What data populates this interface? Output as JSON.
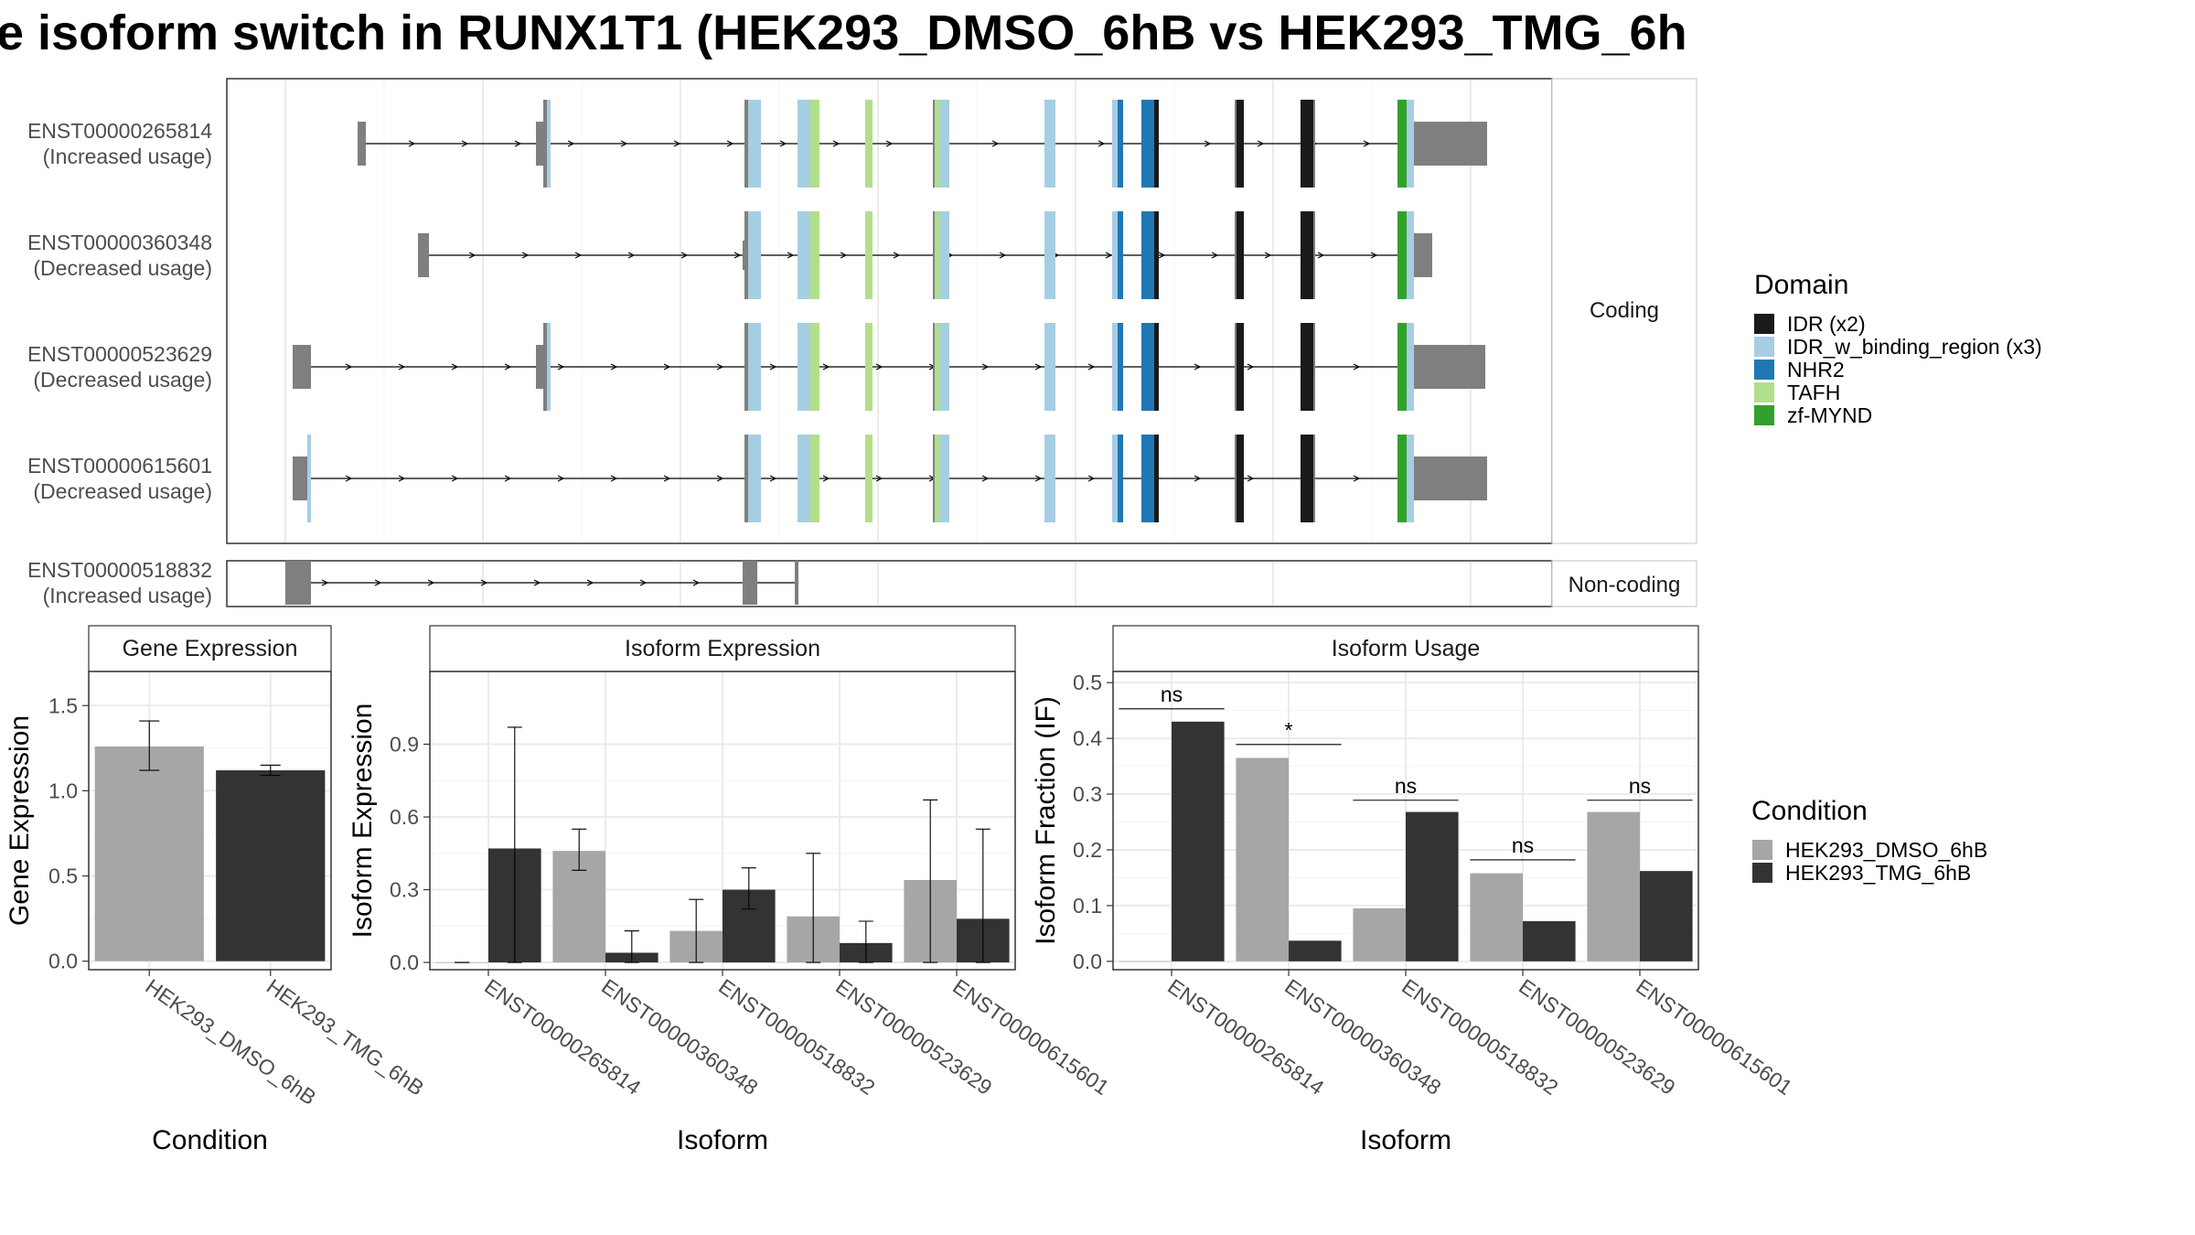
{
  "title": "e isoform switch in RUNX1T1 (HEK293_DMSO_6hB vs HEK293_TMG_6h",
  "colors": {
    "grey_bar": "#a6a6a6",
    "dark_bar": "#333333",
    "exon": "#7f7f7f",
    "IDR": "#1a1a1a",
    "IDR_w_binding_region": "#a6cee3",
    "NHR2": "#1f78b4",
    "TAFH": "#b2df8a",
    "zf_MYND": "#33a02c"
  },
  "structure": {
    "coding_label": "Coding",
    "noncoding_label": "Non-coding",
    "transcripts": [
      {
        "id": "ENST00000265814",
        "usage": "(Increased usage)"
      },
      {
        "id": "ENST00000360348",
        "usage": "(Decreased usage)"
      },
      {
        "id": "ENST00000523629",
        "usage": "(Decreased usage)"
      },
      {
        "id": "ENST00000615601",
        "usage": "(Decreased usage)"
      }
    ],
    "noncoding": {
      "id": "ENST00000518832",
      "usage": "(Increased usage)"
    }
  },
  "domain_legend": {
    "title": "Domain",
    "items": [
      {
        "label": "IDR (x2)",
        "color": "#1a1a1a"
      },
      {
        "label": "IDR_w_binding_region (x3)",
        "color": "#a6cee3"
      },
      {
        "label": "NHR2",
        "color": "#1f78b4"
      },
      {
        "label": "TAFH",
        "color": "#b2df8a"
      },
      {
        "label": "zf-MYND",
        "color": "#33a02c"
      }
    ]
  },
  "condition_legend": {
    "title": "Condition",
    "items": [
      {
        "label": "HEK293_DMSO_6hB",
        "color": "#a6a6a6"
      },
      {
        "label": "HEK293_TMG_6hB",
        "color": "#333333"
      }
    ]
  },
  "chart_data": [
    {
      "type": "bar",
      "title": "Gene Expression",
      "xlabel": "Condition",
      "ylabel": "Gene Expression",
      "ylim": [
        -0.05,
        1.7
      ],
      "yticks": [
        0.0,
        0.5,
        1.0,
        1.5
      ],
      "ytick_labels": [
        "0.0",
        "0.5",
        "1.0",
        "1.5"
      ],
      "categories": [
        "HEK293_DMSO_6hB",
        "HEK293_TMG_6hB"
      ],
      "values": [
        1.26,
        1.12
      ],
      "err_low": [
        1.12,
        1.09
      ],
      "err_high": [
        1.41,
        1.15
      ]
    },
    {
      "type": "bar",
      "title": "Isoform Expression",
      "xlabel": "Isoform",
      "ylabel": "Isoform Expression",
      "ylim": [
        -0.03,
        1.2
      ],
      "yticks": [
        0.0,
        0.3,
        0.6,
        0.9
      ],
      "ytick_labels": [
        "0.0",
        "0.3",
        "0.6",
        "0.9"
      ],
      "categories": [
        "ENST00000265814",
        "ENST00000360348",
        "ENST00000518832",
        "ENST00000523629",
        "ENST00000615601"
      ],
      "series": [
        {
          "name": "HEK293_DMSO_6hB",
          "values": [
            0.0,
            0.46,
            0.13,
            0.19,
            0.34
          ],
          "err_low": [
            0.0,
            0.38,
            0.0,
            0.0,
            0.0
          ],
          "err_high": [
            0.0,
            0.55,
            0.26,
            0.45,
            0.67
          ]
        },
        {
          "name": "HEK293_TMG_6hB",
          "values": [
            0.47,
            0.04,
            0.3,
            0.08,
            0.18
          ],
          "err_low": [
            0.0,
            0.0,
            0.22,
            0.0,
            0.0
          ],
          "err_high": [
            0.97,
            0.13,
            0.39,
            0.17,
            0.55
          ]
        }
      ]
    },
    {
      "type": "bar",
      "title": "Isoform Usage",
      "xlabel": "Isoform",
      "ylabel": "Isoform Fraction (IF)",
      "ylim": [
        -0.015,
        0.52
      ],
      "yticks": [
        0.0,
        0.1,
        0.2,
        0.3,
        0.4,
        0.5
      ],
      "ytick_labels": [
        "0.0",
        "0.1",
        "0.2",
        "0.3",
        "0.4",
        "0.5"
      ],
      "categories": [
        "ENST00000265814",
        "ENST00000360348",
        "ENST00000518832",
        "ENST00000523629",
        "ENST00000615601"
      ],
      "series": [
        {
          "name": "HEK293_DMSO_6hB",
          "values": [
            0.0,
            0.365,
            0.095,
            0.158,
            0.268
          ]
        },
        {
          "name": "HEK293_TMG_6hB",
          "values": [
            0.43,
            0.037,
            0.268,
            0.072,
            0.162
          ]
        }
      ],
      "significance": [
        "ns",
        "*",
        "ns",
        "ns",
        "ns"
      ],
      "sig_y": [
        0.453,
        0.389,
        0.289,
        0.182,
        0.289
      ]
    }
  ]
}
